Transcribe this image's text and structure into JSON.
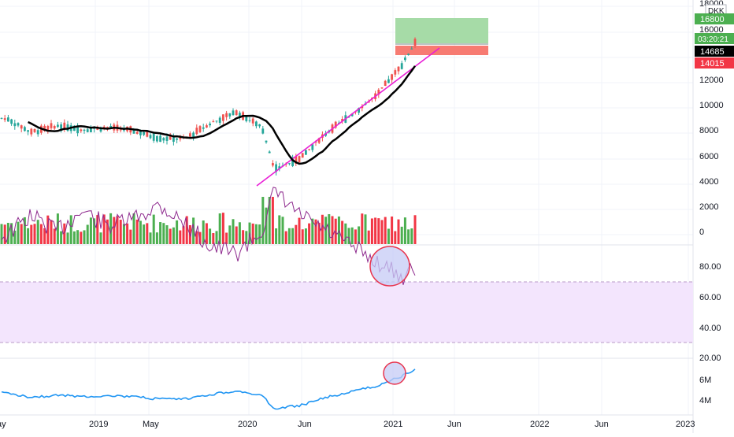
{
  "chart": {
    "currency": "DKK",
    "price_axis_ticks": [
      "18000",
      "16000",
      "12000",
      "10000",
      "8000",
      "6000",
      "4000",
      "2000",
      "0"
    ],
    "rsi_axis_ticks": [
      "80.00",
      "60.00",
      "40.00",
      "20.00"
    ],
    "obv_axis_ticks": [
      "6M",
      "4M"
    ],
    "time_axis_labels": [
      "ay",
      "2019",
      "May",
      "2020",
      "Jun",
      "2021",
      "Jun",
      "2022",
      "Jun",
      "2023"
    ],
    "price_badges": {
      "target": {
        "value": "16800",
        "color": "#4caf50"
      },
      "countdown": {
        "value": "03:20:21",
        "color": "#4caf50"
      },
      "last": {
        "value": "14685",
        "color": "#000000"
      },
      "stop": {
        "value": "14015",
        "color": "#f23645"
      }
    }
  },
  "colors": {
    "up": "#26a69a",
    "down": "#ef5350",
    "vol_up": "#4caf50",
    "vol_down": "#f23645",
    "ma_line": "#000000",
    "trendline": "#e91ed6",
    "rsi_line": "#8e2a8e",
    "rsi_band": "#f3e5fd",
    "obv_line": "#2196f3",
    "highlight_fill": "#c5cbf5",
    "highlight_stroke": "#e8344e",
    "profit_zone": "#a6dba7",
    "loss_zone": "#f77b72"
  },
  "chart_data": {
    "type": "line",
    "x_labels": [
      "2019",
      "May",
      "2020",
      "Jun",
      "2021",
      "Jun",
      "2022",
      "Jun",
      "2023"
    ],
    "series": [
      {
        "x": [
          "2018-06",
          "2018-08",
          "2018-10",
          "2018-12",
          "2019-02",
          "2019-04",
          "2019-06",
          "2019-08",
          "2019-10",
          "2019-12",
          "2020-02",
          "2020-03",
          "2020-05",
          "2020-07",
          "2020-09",
          "2020-11",
          "2021-01",
          "2021-02"
        ],
        "values": [
          9200,
          8100,
          8600,
          8300,
          8500,
          8200,
          7600,
          7600,
          8800,
          9700,
          8500,
          5200,
          6000,
          8000,
          9500,
          11000,
          13500,
          15200
        ]
      },
      {
        "x": [
          "2018-06",
          "2018-08",
          "2018-10",
          "2018-12",
          "2019-02",
          "2019-04",
          "2019-06",
          "2019-08",
          "2019-10",
          "2019-12",
          "2020-02",
          "2020-03",
          "2020-05",
          "2020-07",
          "2020-09",
          "2020-11",
          "2021-01",
          "2021-02"
        ],
        "values": [
          58,
          45,
          55,
          42,
          52,
          47,
          38,
          50,
          65,
          70,
          55,
          30,
          45,
          55,
          65,
          75,
          85,
          80
        ]
      }
    ],
    "annotations": {
      "trade_entry": 14685,
      "target": 16800,
      "stop": 14015,
      "rsi_overbought": 70,
      "rsi_oversold": 30
    },
    "ylim": [
      0,
      18000
    ],
    "rsi_ylim": [
      20,
      90
    ],
    "grid": true
  }
}
